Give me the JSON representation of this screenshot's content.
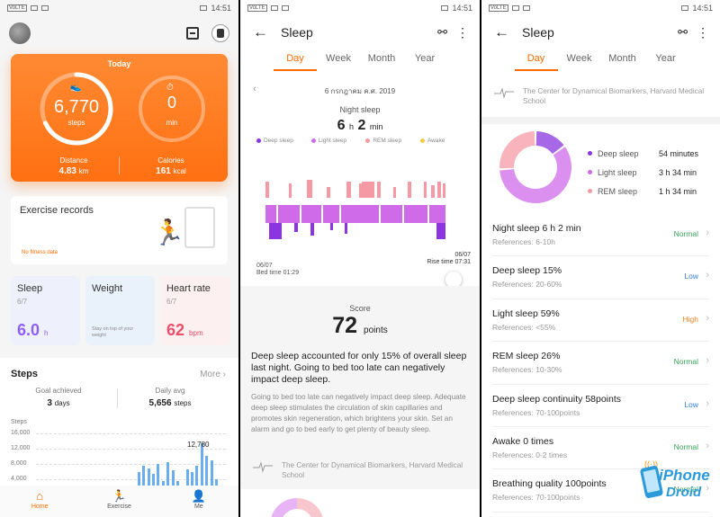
{
  "status": {
    "left_badge": "VoLTE",
    "time": "14:51"
  },
  "home": {
    "today_title": "Today",
    "steps_value": "6,770",
    "steps_label": "steps",
    "steps_progress": 0.68,
    "minutes_value": "0",
    "minutes_label": "min",
    "distance_label": "Distance",
    "distance_value": "4.83",
    "distance_unit": "km",
    "calories_label": "Calories",
    "calories_value": "161",
    "calories_unit": "kcal",
    "exercise_title": "Exercise records",
    "exercise_sub": "No fitness data",
    "tiles": {
      "sleep_title": "Sleep",
      "sleep_date": "6/7",
      "sleep_value": "6.0",
      "sleep_unit": "h",
      "weight_title": "Weight",
      "weight_note": "Stay on top of your weight",
      "heart_title": "Heart rate",
      "heart_date": "6/7",
      "heart_value": "62",
      "heart_unit": "bpm"
    },
    "steps_card": {
      "title": "Steps",
      "more": "More",
      "goal_label": "Goal achieved",
      "goal_value": "3",
      "goal_unit": "days",
      "avg_label": "Daily avg",
      "avg_value": "5,656",
      "avg_unit": "steps",
      "y_title": "Steps",
      "y_ticks": [
        "16,000",
        "12,000",
        "8,000",
        "4,000"
      ],
      "peak_label": "12,780"
    },
    "tabs": [
      "Home",
      "Exercise",
      "Me"
    ]
  },
  "chart_data": {
    "type": "bar",
    "ylabel": "Steps",
    "ylim": [
      0,
      16000
    ],
    "values": [
      0,
      0,
      0,
      0,
      0,
      0,
      0,
      0,
      0,
      0,
      0,
      0,
      0,
      0,
      0,
      0,
      0,
      0,
      0,
      0,
      0,
      4200,
      6000,
      5200,
      3500,
      6500,
      1500,
      7000,
      4500,
      1500,
      0,
      5000,
      4000,
      6000,
      12780,
      9000,
      7500,
      2000,
      0,
      0
    ]
  },
  "sleep": {
    "title": "Sleep",
    "segments": [
      "Day",
      "Week",
      "Month",
      "Year"
    ],
    "date": "6 กรกฎาคม ค.ศ. 2019",
    "night_label": "Night sleep",
    "night_h": "6",
    "night_h_unit": "h",
    "night_m": "2",
    "night_m_unit": "min",
    "legend": [
      "Deep sleep",
      "Light sleep",
      "REM sleep",
      "Awake"
    ],
    "colors": {
      "deep": "#8a35e0",
      "light": "#cf6ae8",
      "rem": "#f59aa5",
      "awake": "#f5c842",
      "accent": "#ff6a00"
    },
    "bed_date": "06/07",
    "bed_time": "Bed time 01:29",
    "rise_date": "06/07",
    "rise_time": "Rise time 07:31",
    "score_label": "Score",
    "score_value": "72",
    "score_unit": "points",
    "advice": "Deep sleep accounted for only 15% of overall sleep last night. Going to bed too late can negatively impact deep sleep.",
    "advice_sub": "Going to bed too late can negatively impact deep sleep. Adequate deep sleep stimulates the circulation of skin capillaries and promotes skin regeneration, which brightens your skin. Set an alarm and go to bed early to get plenty of beauty sleep.",
    "reference": "The Center for Dynamical Biomarkers, Harvard Medical School"
  },
  "detail": {
    "title": "Sleep",
    "segments": [
      "Day",
      "Week",
      "Month",
      "Year"
    ],
    "reference": "The Center for Dynamical Biomarkers, Harvard Medical School",
    "breakdown": [
      {
        "name": "Deep sleep",
        "value": "54 minutes",
        "minutes": 54,
        "color": "#8a35e0"
      },
      {
        "name": "Light sleep",
        "value": "3 h 34 min",
        "minutes": 214,
        "color": "#cf6ae8"
      },
      {
        "name": "REM sleep",
        "value": "1 h 34 min",
        "minutes": 94,
        "color": "#f59aa5"
      }
    ],
    "metrics": [
      {
        "title": "Night sleep  6 h 2 min",
        "ref": "References: 6-10h",
        "status": "Normal",
        "kind": "normal"
      },
      {
        "title": "Deep sleep  15%",
        "ref": "References: 20-60%",
        "status": "Low",
        "kind": "low"
      },
      {
        "title": "Light sleep  59%",
        "ref": "References: <55%",
        "status": "High",
        "kind": "high"
      },
      {
        "title": "REM sleep  26%",
        "ref": "References: 10-30%",
        "status": "Normal",
        "kind": "normal"
      },
      {
        "title": "Deep sleep continuity  58points",
        "ref": "References: 70-100points",
        "status": "Low",
        "kind": "low"
      },
      {
        "title": "Awake  0 times",
        "ref": "References: 0-2 times",
        "status": "Normal",
        "kind": "normal"
      },
      {
        "title": "Breathing quality  100points",
        "ref": "References: 70-100points",
        "status": "Normal",
        "kind": "normal"
      }
    ],
    "watermark_top": "iPhone",
    "watermark_bottom": "Droid"
  }
}
